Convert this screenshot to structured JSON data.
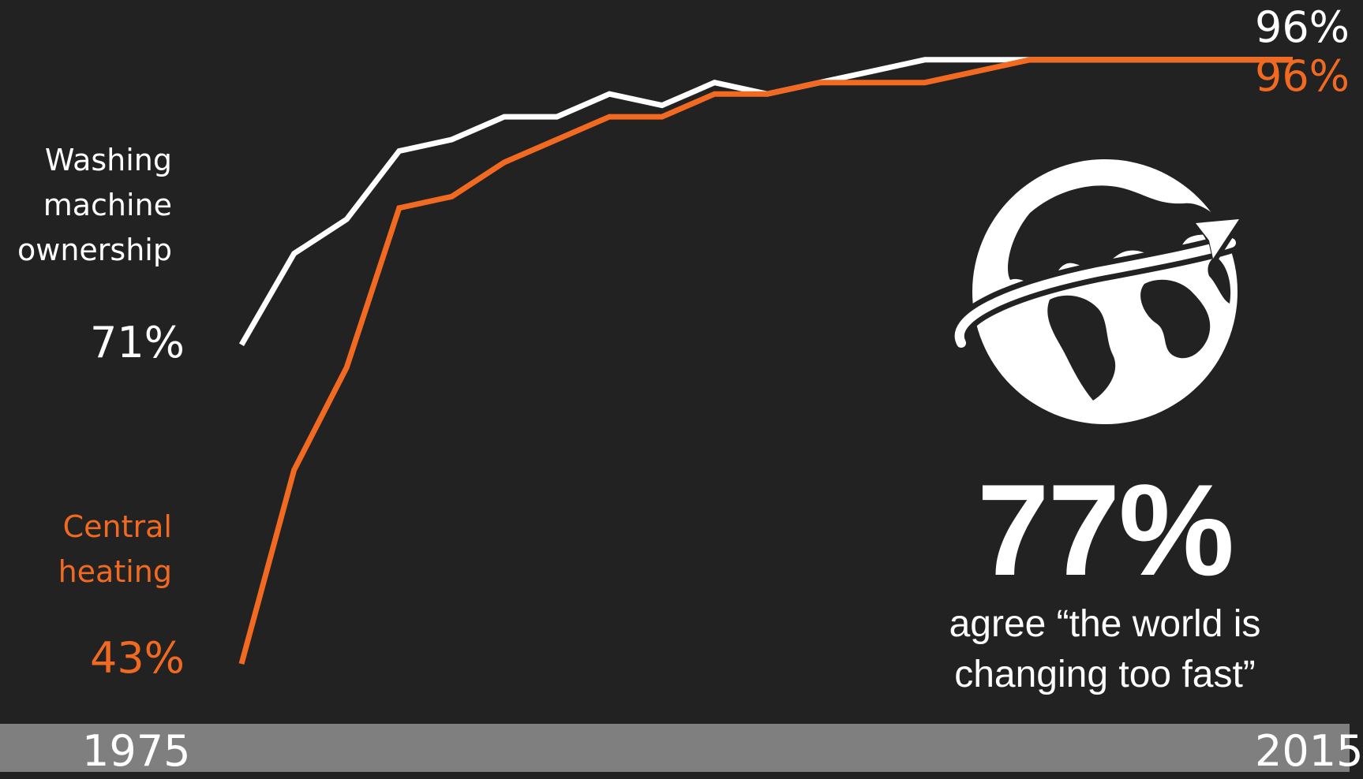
{
  "chart_data": {
    "type": "line",
    "x": [
      1975,
      1977,
      1979,
      1981,
      1983,
      1985,
      1987,
      1989,
      1991,
      1993,
      1995,
      1997,
      1999,
      2001,
      2003,
      2005,
      2007,
      2009,
      2011,
      2013,
      2015
    ],
    "series": [
      {
        "name": "Washing machine ownership",
        "color": "#ffffff",
        "values": [
          71,
          79,
          82,
          88,
          89,
          91,
          91,
          93,
          92,
          94,
          93,
          94,
          95,
          96,
          96,
          96,
          96,
          96,
          96,
          96,
          96
        ]
      },
      {
        "name": "Central heating",
        "color": "#f26a21",
        "values": [
          43,
          60,
          69,
          83,
          84,
          87,
          89,
          91,
          91,
          93,
          93,
          94,
          94,
          94,
          95,
          96,
          96,
          96,
          96,
          96,
          96
        ]
      }
    ],
    "ylim": [
      43,
      100
    ],
    "xlim": [
      1975,
      2015
    ]
  },
  "labels": {
    "washing_name": "Washing\nmachine\nownership",
    "washing_start": "71%",
    "washing_end": "96%",
    "heating_name": "Central\nheating",
    "heating_start": "43%",
    "heating_end": "96%"
  },
  "axis": {
    "start_year": "1975",
    "end_year": "2015"
  },
  "callout": {
    "stat": "77%",
    "caption": "agree “the world is changing too fast”",
    "icon": "globe-arrow-icon"
  },
  "colors": {
    "background": "#222222",
    "accent": "#f26a21",
    "axis_bar": "#7f7f7f"
  }
}
